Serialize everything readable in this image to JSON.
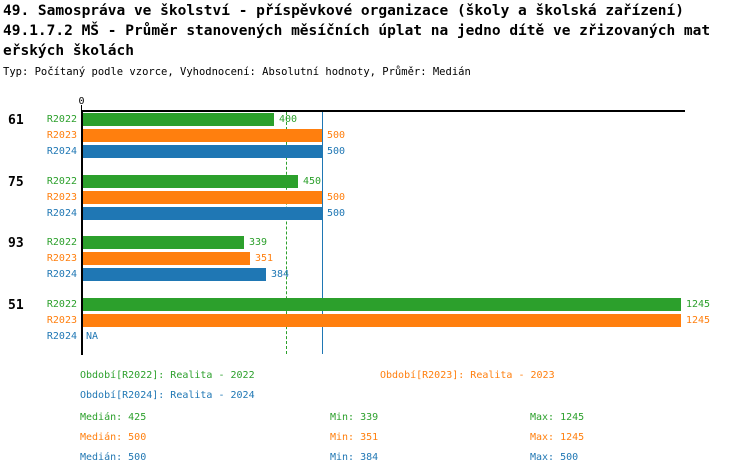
{
  "header": {
    "title_lines": [
      "49. Samospráva ve školství - příspěvkové organizace (školy a školská zařízení)",
      "49.1.7.2 MŠ - Průměr stanovených měsíčních úplat na jedno dítě ve zřizovaných mat",
      "eřských školách"
    ],
    "subtitle": "Typ: Počítaný podle vzorce, Vyhodnocení: Absolutní hodnoty, Průměr: Medián"
  },
  "chart_data": {
    "type": "bar",
    "orientation": "horizontal",
    "categories": [
      "61",
      "75",
      "93",
      "51"
    ],
    "series": [
      {
        "name": "R2022",
        "color": "#2ca02c",
        "values": [
          400,
          450,
          339,
          1245
        ],
        "median": 425,
        "min": 339,
        "max": 1245,
        "median_line_style": "dashed"
      },
      {
        "name": "R2023",
        "color": "#ff7f0e",
        "values": [
          500,
          500,
          351,
          1245
        ],
        "median": 500,
        "min": 351,
        "max": 1245,
        "median_line_style": "dashed"
      },
      {
        "name": "R2024",
        "color": "#1f77b4",
        "values": [
          500,
          500,
          384,
          null
        ],
        "median": 500,
        "min": 384,
        "max": 500,
        "median_line_style": "solid"
      }
    ],
    "null_display": "NA",
    "xlim": [
      0,
      1253
    ],
    "x_ticks": [
      {
        "value": 0,
        "label": "0"
      }
    ],
    "grid": false,
    "value_labels": true,
    "legend_position": "bottom",
    "axis_color": "#000000"
  },
  "legend": {
    "items": [
      {
        "label": "Období[R2022]: Realita - 2022"
      },
      {
        "label": "Období[R2023]: Realita - 2023"
      },
      {
        "label": "Období[R2024]: Realita - 2024"
      }
    ]
  },
  "stats": {
    "rows": [
      {
        "median": "Medián: 425",
        "min": "Min: 339",
        "max": "Max: 1245"
      },
      {
        "median": "Medián: 500",
        "min": "Min: 351",
        "max": "Max: 1245"
      },
      {
        "median": "Medián: 500",
        "min": "Min: 384",
        "max": "Max: 500"
      }
    ]
  }
}
